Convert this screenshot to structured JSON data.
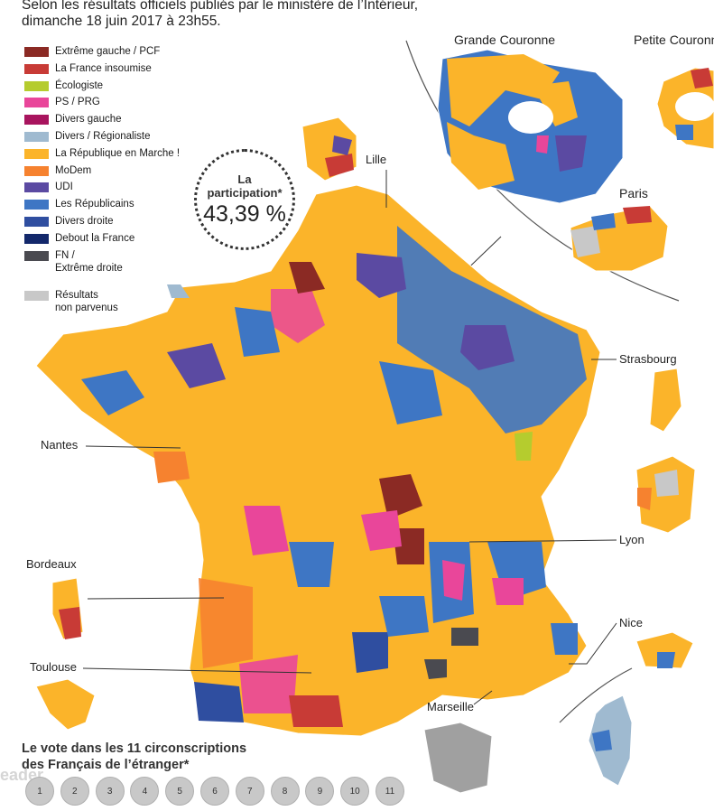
{
  "header": {
    "line1": "Selon les résultats officiels publiés par le ministère de l’Intérieur,",
    "line2": "dimanche 18 juin 2017 à 23h55."
  },
  "legend": [
    {
      "label": "Extrême gauche  / PCF",
      "color": "#8b2a24"
    },
    {
      "label": "La France insoumise",
      "color": "#c83b36"
    },
    {
      "label": "Écologiste",
      "color": "#b5cc2e"
    },
    {
      "label": "PS / PRG",
      "color": "#e9469a"
    },
    {
      "label": "Divers gauche",
      "color": "#a8145e"
    },
    {
      "label": "Divers / Régionaliste",
      "color": "#9fbad0"
    },
    {
      "label": "La République en Marche !",
      "color": "#fbb42a"
    },
    {
      "label": "MoDem",
      "color": "#f6822f"
    },
    {
      "label": "UDI",
      "color": "#5b4aa2"
    },
    {
      "label": "Les Républicains",
      "color": "#3e76c4"
    },
    {
      "label": "Divers droite",
      "color": "#2f4ea0"
    },
    {
      "label": "Debout la France",
      "color": "#13286b"
    },
    {
      "label": "FN /\nExtrême droite",
      "color": "#4a4a50"
    },
    {
      "label": "Résultats\nnon parvenus",
      "color": "#c8c8c8"
    }
  ],
  "participation": {
    "label": "La\nparticipation*",
    "value": "43,39 %"
  },
  "cities": {
    "lille": "Lille",
    "strasbourg": "Strasbourg",
    "nantes": "Nantes",
    "lyon": "Lyon",
    "bordeaux": "Bordeaux",
    "nice": "Nice",
    "toulouse": "Toulouse",
    "marseille": "Marseille"
  },
  "insets": {
    "grande_couronne": "Grande Couronne",
    "petite_couronne": "Petite Couronne",
    "paris": "Paris"
  },
  "abroad": {
    "title": "Le vote dans les 11 circonscriptions\ndes Français de l’étranger*",
    "circonscriptions": [
      "1",
      "2",
      "3",
      "4",
      "5",
      "6",
      "7",
      "8",
      "9",
      "10",
      "11"
    ]
  },
  "watermark": "eader"
}
